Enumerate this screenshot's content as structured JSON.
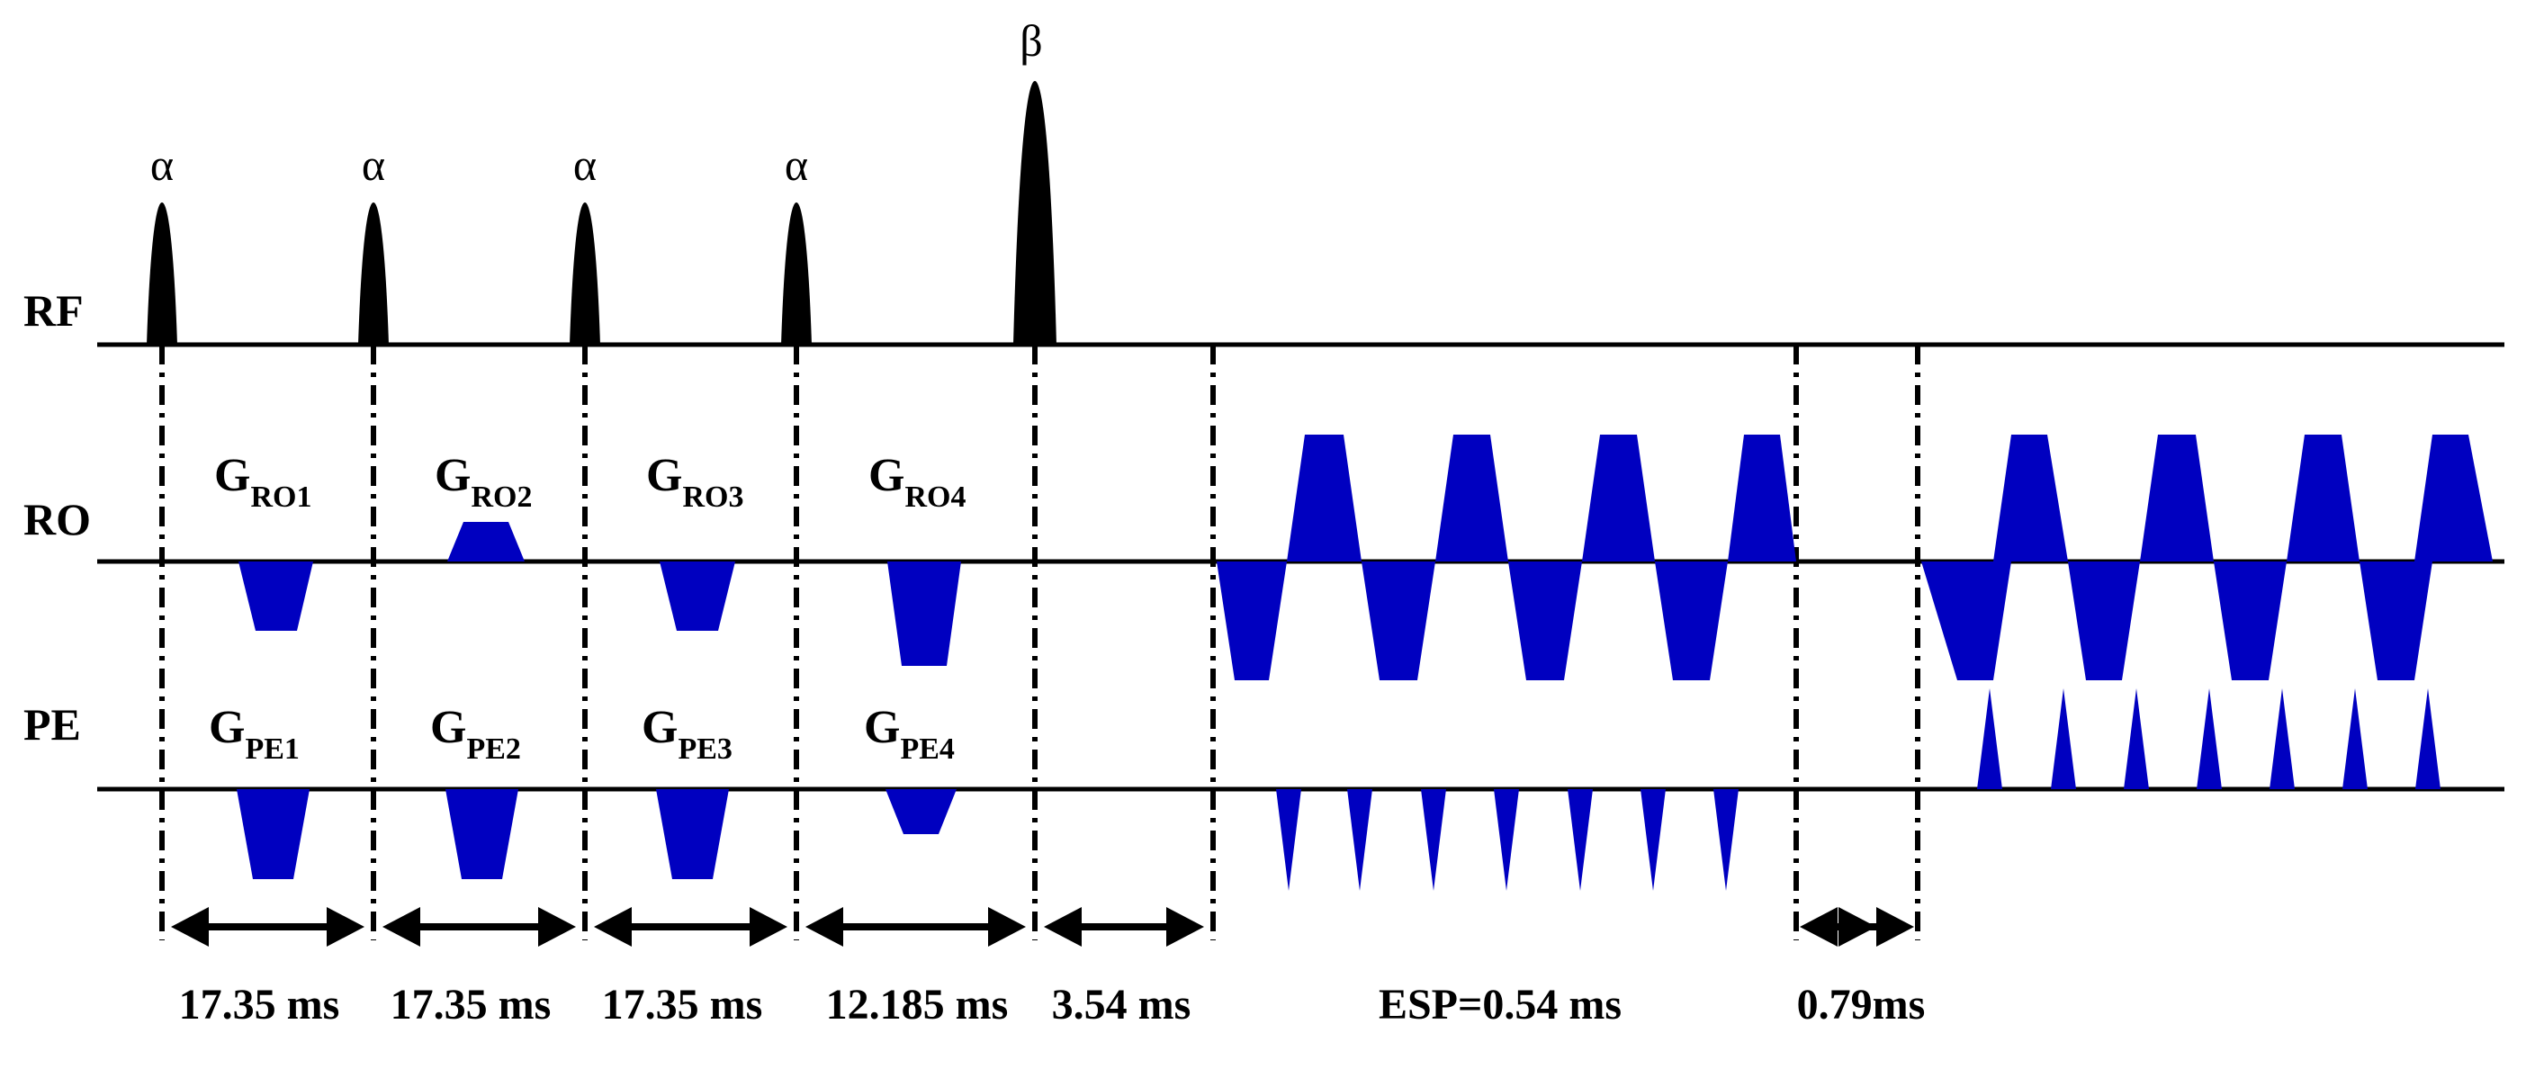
{
  "rows": {
    "rf": "RF",
    "ro": "RO",
    "pe": "PE"
  },
  "pulses": {
    "alpha": "α",
    "beta": "β"
  },
  "gradients": {
    "ro": [
      {
        "base": "G",
        "sub": "RO1"
      },
      {
        "base": "G",
        "sub": "RO2"
      },
      {
        "base": "G",
        "sub": "RO3"
      },
      {
        "base": "G",
        "sub": "RO4"
      }
    ],
    "pe": [
      {
        "base": "G",
        "sub": "PE1"
      },
      {
        "base": "G",
        "sub": "PE2"
      },
      {
        "base": "G",
        "sub": "PE3"
      },
      {
        "base": "G",
        "sub": "PE4"
      }
    ]
  },
  "timings": [
    "17.35 ms",
    "17.35 ms",
    "17.35 ms",
    "12.185 ms",
    "3.54 ms",
    "ESP=0.54 ms",
    "0.79ms"
  ],
  "colors": {
    "gradient": "#0000c0",
    "pulse": "#000000"
  }
}
